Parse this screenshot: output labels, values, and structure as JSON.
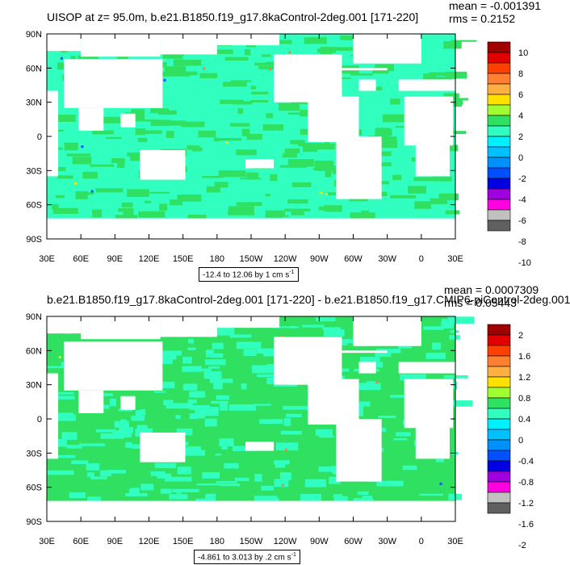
{
  "panels": [
    {
      "title": "UISOP at z=  95.0m, b.e21.B1850.f19_g17.8kaControl-2deg.001 [171-220]",
      "mean": "mean = -0.001391",
      "rms": "rms = 0.2152",
      "range_label": "-12.4 to 12.06 by 1 cm s",
      "range_exp": "-1",
      "colorbar_labels": [
        "10",
        "8",
        "6",
        "4",
        "2",
        "0",
        "-2",
        "-4",
        "-6",
        "-8",
        "-10"
      ]
    },
    {
      "title": "b.e21.B1850.f19_g17.8kaControl-2deg.001 [171-220] - b.e21.B1850.f19_g17.CMIP6-piControl-2deg.001",
      "mean": "mean = 0.0007309",
      "rms": "rms = 0.05443",
      "range_label": "-4.861 to 3.013 by .2 cm s",
      "range_exp": "-1",
      "colorbar_labels": [
        "2",
        "1.6",
        "1.2",
        "0.8",
        "0.4",
        "0",
        "-0.4",
        "-0.8",
        "-1.2",
        "-1.6",
        "-2"
      ]
    }
  ],
  "x_ticks": [
    "30E",
    "60E",
    "90E",
    "120E",
    "150E",
    "180",
    "150W",
    "120W",
    "90W",
    "60W",
    "30W",
    "0",
    "30E"
  ],
  "y_ticks": [
    "90N",
    "60N",
    "30N",
    "0",
    "30S",
    "60S",
    "90S"
  ],
  "colorbar_colors": [
    "#a00000",
    "#e00000",
    "#ff4000",
    "#ff8030",
    "#ffb040",
    "#ffe000",
    "#a0ff30",
    "#30e060",
    "#30ffc0",
    "#00f0ff",
    "#00c0ff",
    "#0090ff",
    "#0050ff",
    "#0000e0",
    "#a000e0",
    "#ff00e0",
    "#c0c0c0",
    "#606060"
  ],
  "map_colors": {
    "land": "#ffffff",
    "ocean_p1": "#30ffc0",
    "pattern_p1": "#30e060",
    "ocean_p2": "#30e060",
    "pattern_p2": "#30ffc0"
  },
  "chart_data": [
    {
      "type": "heatmap",
      "title": "UISOP at z=  95.0m, b.e21.B1850.f19_g17.8kaControl-2deg.001 [171-220]",
      "xlabel": "",
      "ylabel": "",
      "xlim": [
        30,
        390
      ],
      "ylim": [
        -90,
        90
      ],
      "contour_levels": [
        -10,
        -9,
        -8,
        -7,
        -6,
        -5,
        -4,
        -3,
        -2,
        -1,
        0,
        1,
        2,
        3,
        4,
        5,
        6,
        7,
        8,
        9,
        10
      ],
      "units": "cm s-1",
      "mean": -0.001391,
      "rms": 0.2152,
      "min": -12.4,
      "max": 12.06,
      "interval": 1
    },
    {
      "type": "heatmap",
      "title": "b.e21.B1850.f19_g17.8kaControl-2deg.001 [171-220] - b.e21.B1850.f19_g17.CMIP6-piControl-2deg.001",
      "xlabel": "",
      "ylabel": "",
      "xlim": [
        30,
        390
      ],
      "ylim": [
        -90,
        90
      ],
      "contour_levels": [
        -2,
        -1.8,
        -1.6,
        -1.4,
        -1.2,
        -1,
        -0.8,
        -0.6,
        -0.4,
        -0.2,
        0,
        0.2,
        0.4,
        0.6,
        0.8,
        1,
        1.2,
        1.4,
        1.6,
        1.8,
        2
      ],
      "units": "cm s-1",
      "mean": 0.0007309,
      "rms": 0.05443,
      "min": -4.861,
      "max": 3.013,
      "interval": 0.2
    }
  ]
}
